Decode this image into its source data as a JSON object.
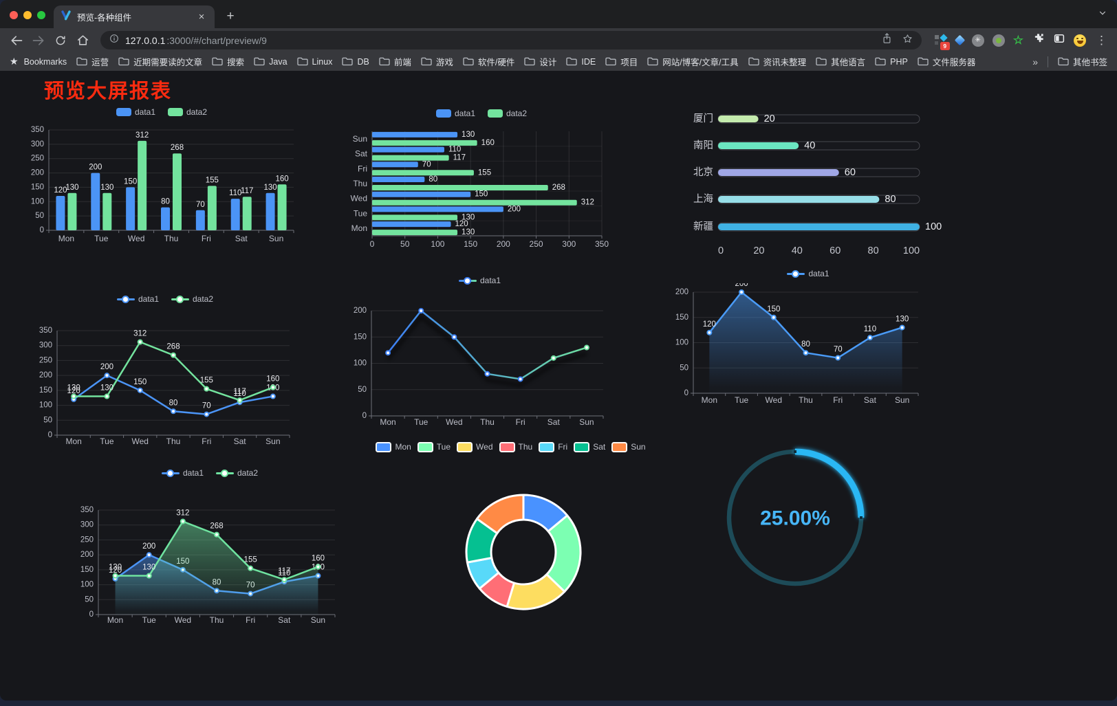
{
  "browser": {
    "tab": {
      "title": "预览-各种组件",
      "close_glyph": "×",
      "new_tab_glyph": "+"
    },
    "url": {
      "host": "127.0.0.1",
      "rest": ":3000/#/chart/preview/9"
    },
    "extension_badge": "9",
    "bookmarks_bar": {
      "label": "Bookmarks",
      "folders": [
        "运营",
        "近期需要读的文章",
        "搜索",
        "Java",
        "Linux",
        "DB",
        "前端",
        "游戏",
        "软件/硬件",
        "设计",
        "IDE",
        "项目",
        "网站/博客/文章/工具",
        "资讯未整理",
        "其他语言",
        "PHP",
        "文件服务器"
      ],
      "overflow_glyph": "»",
      "other_bookmarks": "其他书签"
    }
  },
  "page": {
    "title": "预览大屏报表",
    "title_color": "#fa2b10",
    "background": "#16171b"
  },
  "chart_data": [
    {
      "id": "bar-grouped",
      "type": "bar",
      "categories": [
        "Mon",
        "Tue",
        "Wed",
        "Thu",
        "Fri",
        "Sat",
        "Sun"
      ],
      "series": [
        {
          "name": "data1",
          "color": "#4b94f6",
          "values": [
            120,
            200,
            150,
            80,
            70,
            110,
            130
          ]
        },
        {
          "name": "data2",
          "color": "#73e39e",
          "values": [
            130,
            130,
            312,
            268,
            155,
            117,
            160
          ]
        }
      ],
      "ylim": [
        0,
        350
      ],
      "yticks": [
        0,
        50,
        100,
        150,
        200,
        250,
        300,
        350
      ],
      "labels": true,
      "legend_position": "top",
      "grid": true
    },
    {
      "id": "bar-horizontal",
      "type": "bar-horizontal",
      "categories": [
        "Mon",
        "Tue",
        "Wed",
        "Thu",
        "Fri",
        "Sat",
        "Sun"
      ],
      "display_order_top_to_bottom": [
        "Sun",
        "Sat",
        "Fri",
        "Thu",
        "Wed",
        "Tue",
        "Mon"
      ],
      "series": [
        {
          "name": "data1",
          "color": "#4b94f6",
          "values": [
            120,
            200,
            150,
            80,
            70,
            110,
            130
          ]
        },
        {
          "name": "data2",
          "color": "#73e39e",
          "values": [
            130,
            130,
            312,
            268,
            155,
            117,
            160
          ]
        }
      ],
      "xlim": [
        0,
        350
      ],
      "xticks": [
        0,
        50,
        100,
        150,
        200,
        250,
        300,
        350
      ],
      "labels": true,
      "legend_position": "top"
    },
    {
      "id": "progress-bars",
      "type": "bar-horizontal-progress",
      "categories": [
        "厦门",
        "南阳",
        "北京",
        "上海",
        "新疆"
      ],
      "values": [
        20,
        40,
        60,
        80,
        100
      ],
      "colors": [
        "#c4ebad",
        "#6be6c1",
        "#a0a7e6",
        "#96dee8",
        "#3fb1e3"
      ],
      "xlim": [
        0,
        100
      ],
      "xticks": [
        0,
        20,
        40,
        60,
        80,
        100
      ],
      "labels": true
    },
    {
      "id": "line-dual",
      "type": "line",
      "categories": [
        "Mon",
        "Tue",
        "Wed",
        "Thu",
        "Fri",
        "Sat",
        "Sun"
      ],
      "series": [
        {
          "name": "data1",
          "color": "#4b94f6",
          "values": [
            120,
            200,
            150,
            80,
            70,
            110,
            130
          ]
        },
        {
          "name": "data2",
          "color": "#73e39e",
          "values": [
            130,
            130,
            312,
            268,
            155,
            117,
            160
          ]
        }
      ],
      "ylim": [
        0,
        350
      ],
      "yticks": [
        0,
        50,
        100,
        150,
        200,
        250,
        300,
        350
      ],
      "labels": true,
      "legend_position": "top"
    },
    {
      "id": "line-gradient",
      "type": "line",
      "variant": "gradient-shadow",
      "categories": [
        "Mon",
        "Tue",
        "Wed",
        "Thu",
        "Fri",
        "Sat",
        "Sun"
      ],
      "series": [
        {
          "name": "data1",
          "gradient": [
            "#3d7ff5",
            "#6fe0a0"
          ],
          "values": [
            120,
            200,
            150,
            80,
            70,
            110,
            130
          ]
        }
      ],
      "ylim": [
        0,
        200
      ],
      "yticks": [
        0,
        50,
        100,
        150,
        200
      ],
      "labels": false,
      "legend_position": "top"
    },
    {
      "id": "area-single",
      "type": "area",
      "categories": [
        "Mon",
        "Tue",
        "Wed",
        "Thu",
        "Fri",
        "Sat",
        "Sun"
      ],
      "series": [
        {
          "name": "data1",
          "color": "#4a9bf7",
          "values": [
            120,
            200,
            150,
            80,
            70,
            110,
            130
          ]
        }
      ],
      "ylim": [
        0,
        200
      ],
      "yticks": [
        0,
        50,
        100,
        150,
        200
      ],
      "labels": true,
      "legend_position": "top"
    },
    {
      "id": "area-dual",
      "type": "area",
      "categories": [
        "Mon",
        "Tue",
        "Wed",
        "Thu",
        "Fri",
        "Sat",
        "Sun"
      ],
      "series": [
        {
          "name": "data1",
          "color": "#4b94f6",
          "values": [
            120,
            200,
            150,
            80,
            70,
            110,
            130
          ]
        },
        {
          "name": "data2",
          "color": "#6fe3a0",
          "values": [
            130,
            130,
            312,
            268,
            155,
            117,
            160
          ]
        }
      ],
      "ylim": [
        0,
        350
      ],
      "yticks": [
        0,
        50,
        100,
        150,
        200,
        250,
        300,
        350
      ],
      "labels": true,
      "legend_position": "top"
    },
    {
      "id": "donut",
      "type": "pie",
      "categories": [
        "Mon",
        "Tue",
        "Wed",
        "Thu",
        "Fri",
        "Sat",
        "Sun"
      ],
      "values": [
        120,
        200,
        150,
        80,
        70,
        110,
        130
      ],
      "colors": [
        "#4992ff",
        "#7cffb2",
        "#fddd60",
        "#ff6e76",
        "#58d9f9",
        "#05c091",
        "#ff8a45"
      ],
      "legend_position": "top",
      "inner_radius_ratio": 0.57
    },
    {
      "id": "gauge",
      "type": "gauge",
      "value": 25,
      "label": "25.00%",
      "color": "#29b7f4",
      "track_color": "#1d4b58",
      "text_color": "#47b6f8"
    }
  ]
}
